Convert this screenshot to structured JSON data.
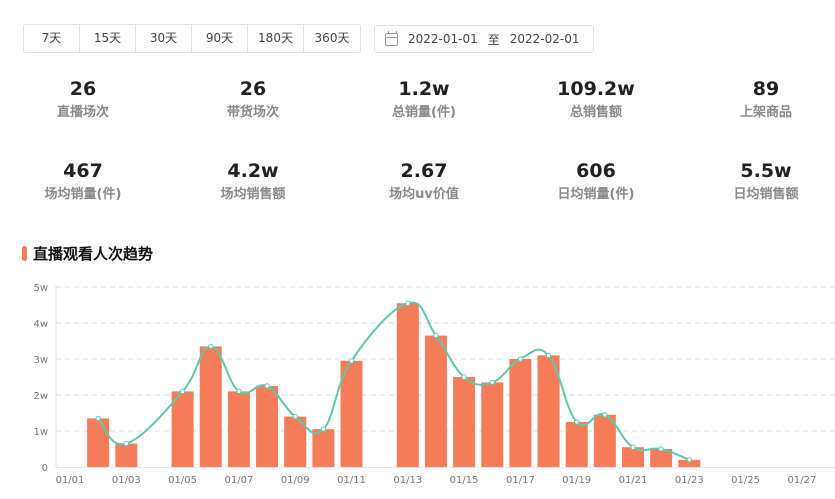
{
  "range_buttons": [
    "7天",
    "15天",
    "30天",
    "90天",
    "180天",
    "360天"
  ],
  "date_range": {
    "start": "2022-01-01",
    "separator": "至",
    "end": "2022-02-01",
    "icon": "calendar-icon"
  },
  "stats_row1": [
    {
      "value": "26",
      "label": "直播场次"
    },
    {
      "value": "26",
      "label": "带货场次"
    },
    {
      "value": "1.2w",
      "label": "总销量(件)"
    },
    {
      "value": "109.2w",
      "label": "总销售额"
    },
    {
      "value": "89",
      "label": "上架商品"
    }
  ],
  "stats_row2": [
    {
      "value": "467",
      "label": "场均销量(件)"
    },
    {
      "value": "4.2w",
      "label": "场均销售额"
    },
    {
      "value": "2.67",
      "label": "场均uv价值"
    },
    {
      "value": "606",
      "label": "日均销量(件)"
    },
    {
      "value": "5.5w",
      "label": "日均销售额"
    }
  ],
  "section_title": "直播观看人次趋势",
  "colors": {
    "accent": "#f47c58",
    "bar": "#f47c58",
    "line": "#5cc9b0",
    "grid": "#dcdcdc"
  },
  "chart_data": {
    "type": "bar",
    "title": "直播观看人次趋势",
    "y_ticks": [
      "0",
      "1w",
      "2w",
      "3w",
      "4w",
      "5w"
    ],
    "ylim": [
      0,
      50000
    ],
    "x_tick_labels": [
      "01/01",
      "01/03",
      "01/05",
      "01/07",
      "01/09",
      "01/11",
      "01/13",
      "01/15",
      "01/17",
      "01/19",
      "01/21",
      "01/23",
      "01/25",
      "01/27"
    ],
    "grid": true,
    "categories": [
      "01/01",
      "01/02",
      "01/03",
      "01/04",
      "01/05",
      "01/06",
      "01/07",
      "01/08",
      "01/09",
      "01/10",
      "01/11",
      "01/12",
      "01/13",
      "01/14",
      "01/15",
      "01/16",
      "01/17",
      "01/18",
      "01/19",
      "01/20",
      "01/21",
      "01/22",
      "01/23",
      "01/24",
      "01/25",
      "01/26",
      "01/27",
      "01/28"
    ],
    "series": [
      {
        "type": "bar",
        "values": [
          null,
          13500,
          6500,
          null,
          21000,
          33500,
          21000,
          22500,
          14000,
          10500,
          29500,
          null,
          45500,
          36500,
          25000,
          23500,
          30000,
          31000,
          12500,
          14500,
          5500,
          5000,
          2000,
          null,
          null,
          null,
          null,
          null
        ]
      },
      {
        "type": "line",
        "values": [
          null,
          13500,
          6500,
          null,
          21000,
          33500,
          21000,
          22500,
          14000,
          10500,
          29500,
          null,
          45500,
          36500,
          25000,
          23500,
          30000,
          31000,
          12500,
          14500,
          5500,
          5000,
          2000,
          null,
          null,
          null,
          null,
          null
        ]
      }
    ]
  }
}
